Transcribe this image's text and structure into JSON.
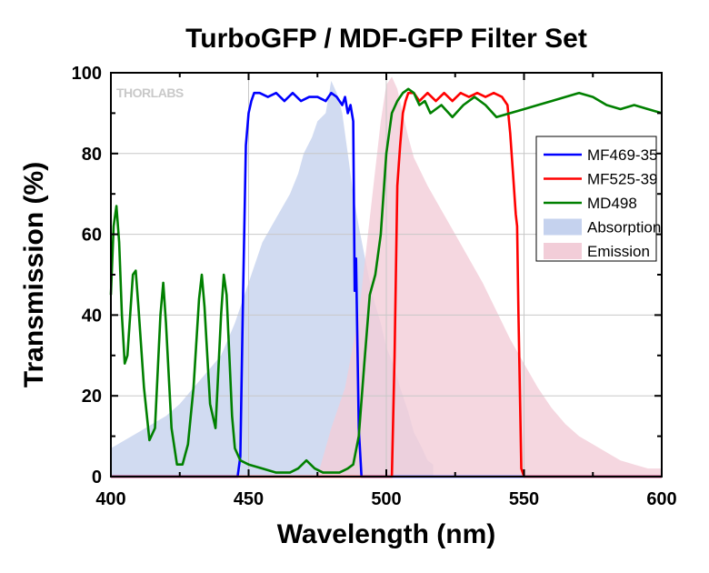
{
  "chart_data": {
    "type": "line",
    "title": "TurboGFP / MDF-GFP Filter Set",
    "xlabel": "Wavelength (nm)",
    "ylabel": "Transmission (%)",
    "xlim": [
      400,
      600
    ],
    "ylim": [
      0,
      100
    ],
    "xticks": [
      400,
      450,
      500,
      550,
      600
    ],
    "yticks": [
      0,
      20,
      40,
      60,
      80,
      100
    ],
    "grid": true,
    "legend_position": "right",
    "logo": "THORLABS",
    "series": [
      {
        "name": "MF469-35",
        "kind": "line",
        "color": "#0000ff",
        "x": [
          400,
          446,
          447,
          448,
          449,
          450,
          451,
          452,
          454,
          457,
          460,
          463,
          466,
          469,
          472,
          475,
          478,
          480,
          482,
          484,
          485,
          486,
          487,
          488,
          488.5,
          489,
          490,
          491,
          492,
          600
        ],
        "y": [
          0,
          0,
          5,
          45,
          82,
          90,
          93,
          95,
          95,
          94,
          95,
          93,
          95,
          93,
          94,
          94,
          93,
          95,
          94,
          92,
          94,
          90,
          92,
          88,
          46,
          54,
          12,
          0,
          0,
          0
        ]
      },
      {
        "name": "MF525-39",
        "kind": "line",
        "color": "#ff0000",
        "x": [
          400,
          502,
          503,
          504,
          505,
          506,
          507,
          508,
          510,
          512,
          515,
          518,
          521,
          524,
          527,
          530,
          533,
          536,
          539,
          542,
          544,
          545,
          546,
          547,
          547.5,
          548,
          549,
          550,
          600
        ],
        "y": [
          0,
          0,
          30,
          72,
          82,
          90,
          93,
          95,
          95,
          93,
          95,
          93,
          95,
          93,
          95,
          94,
          95,
          94,
          95,
          94,
          92,
          85,
          75,
          65,
          62,
          40,
          2,
          0,
          0
        ]
      },
      {
        "name": "MD498",
        "kind": "line",
        "color": "#008000",
        "x": [
          400,
          401,
          402,
          403,
          404,
          405,
          406,
          407,
          408,
          409,
          410,
          412,
          414,
          416,
          418,
          419,
          420,
          422,
          424,
          426,
          428,
          430,
          432,
          433,
          434,
          436,
          438,
          440,
          441,
          442,
          443,
          444,
          445,
          447,
          450,
          455,
          460,
          465,
          468,
          471,
          474,
          477,
          480,
          483,
          486,
          488,
          490,
          492,
          494,
          496,
          498,
          500,
          502,
          504,
          506,
          508,
          510,
          512,
          514,
          516,
          518,
          520,
          524,
          528,
          532,
          536,
          540,
          545,
          550,
          555,
          560,
          565,
          570,
          575,
          580,
          585,
          590,
          595,
          600
        ],
        "y": [
          45,
          62,
          67,
          58,
          40,
          28,
          30,
          40,
          50,
          51,
          42,
          22,
          9,
          12,
          40,
          48,
          38,
          12,
          3,
          3,
          8,
          22,
          44,
          50,
          42,
          18,
          12,
          40,
          50,
          45,
          30,
          15,
          7,
          4,
          3,
          2,
          1,
          1,
          2,
          4,
          2,
          1,
          1,
          1,
          2,
          3,
          10,
          28,
          45,
          50,
          60,
          80,
          90,
          93,
          95,
          96,
          95,
          92,
          93,
          90,
          91,
          92,
          89,
          92,
          94,
          92,
          89,
          90,
          91,
          92,
          93,
          94,
          95,
          94,
          92,
          91,
          92,
          91,
          90
        ]
      },
      {
        "name": "Absorption",
        "kind": "area",
        "color": "#c5d2ee",
        "x": [
          400,
          405,
          410,
          415,
          420,
          425,
          430,
          435,
          440,
          445,
          450,
          455,
          460,
          465,
          468,
          470,
          473,
          475,
          478,
          480,
          482,
          484,
          486,
          488,
          490,
          492,
          495,
          498,
          500,
          503,
          505,
          508,
          510,
          513,
          515,
          517
        ],
        "y": [
          7,
          9,
          11,
          13,
          15,
          18,
          22,
          26,
          30,
          38,
          48,
          58,
          64,
          70,
          75,
          80,
          84,
          88,
          90,
          98,
          95,
          90,
          80,
          70,
          62,
          55,
          45,
          38,
          32,
          27,
          22,
          16,
          11,
          7,
          4,
          3
        ]
      },
      {
        "name": "Emission",
        "kind": "area",
        "color": "#f2cdd8",
        "x": [
          475,
          480,
          485,
          490,
          495,
          498,
          500,
          502,
          504,
          506,
          508,
          510,
          515,
          520,
          525,
          530,
          535,
          540,
          545,
          550,
          555,
          560,
          565,
          570,
          575,
          580,
          585,
          590,
          595,
          600
        ],
        "y": [
          0,
          12,
          22,
          40,
          70,
          88,
          97,
          99,
          96,
          90,
          84,
          79,
          72,
          66,
          60,
          54,
          48,
          41,
          34,
          28,
          22,
          17,
          13,
          10,
          8,
          6,
          4,
          3,
          2,
          2
        ]
      }
    ]
  }
}
